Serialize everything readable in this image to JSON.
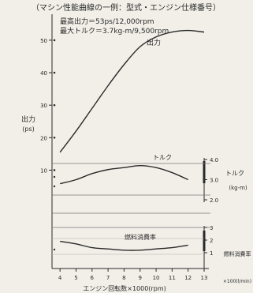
{
  "page": {
    "top_caption": "（マシン性能曲線の一例：型式・エンジン仕様番号）"
  },
  "annotations": {
    "max_power": "最高出力＝53ps/12,000rpm",
    "max_torque": "最大トルク＝3.7kg-m/9,500rpm",
    "power_curve": "出力",
    "torque_curve": "トルク",
    "fuel_curve": "燃料消費率"
  },
  "axes": {
    "left_unit": "出力",
    "left_unit_sub": "(ps)",
    "right_torque_unit": "トルク",
    "right_torque_unit_sub": "(kg-m)",
    "right_fuel_unit": "燃料消費率",
    "right_fuel_unit_sub": "×100(l/min)",
    "x_label": "エンジン回転数×1000(rpm)"
  },
  "chart_data": [
    {
      "type": "line",
      "title": "",
      "xlabel": "エンジン回転数×1000(rpm)",
      "ylabel": "出力 (ps)",
      "x": [
        4,
        5,
        6,
        7,
        8,
        9,
        10,
        11,
        12,
        13
      ],
      "xlim": [
        3.5,
        13
      ],
      "ylim": [
        5,
        58
      ],
      "yticks": [
        10,
        20,
        30,
        40,
        50
      ],
      "series": [
        {
          "name": "出力",
          "values": [
            15.5,
            22,
            29,
            36,
            42.5,
            48,
            51,
            52.5,
            53,
            52.5
          ]
        }
      ]
    },
    {
      "type": "line",
      "title": "",
      "xlabel": "エンジン回転数×1000(rpm)",
      "ylabel": "トルク (kg-m)",
      "x": [
        4,
        5,
        6,
        7,
        8,
        9,
        10,
        11,
        12
      ],
      "ylim": [
        2.0,
        4.0
      ],
      "yticks": [
        2.0,
        3.0,
        4.0
      ],
      "series": [
        {
          "name": "トルク",
          "values": [
            2.8,
            3.0,
            3.3,
            3.5,
            3.6,
            3.7,
            3.6,
            3.35,
            3.0
          ]
        }
      ]
    },
    {
      "type": "line",
      "title": "",
      "xlabel": "エンジン回転数×1000(rpm)",
      "ylabel": "燃料消費率 ×100(l/min)",
      "x": [
        4,
        5,
        6,
        7,
        8,
        9,
        10,
        11,
        12
      ],
      "ylim": [
        0,
        3
      ],
      "yticks": [
        1,
        2,
        3
      ],
      "series": [
        {
          "name": "燃料消費率",
          "values": [
            1.9,
            1.7,
            1.4,
            1.3,
            1.2,
            1.2,
            1.3,
            1.4,
            1.6
          ]
        }
      ]
    }
  ]
}
